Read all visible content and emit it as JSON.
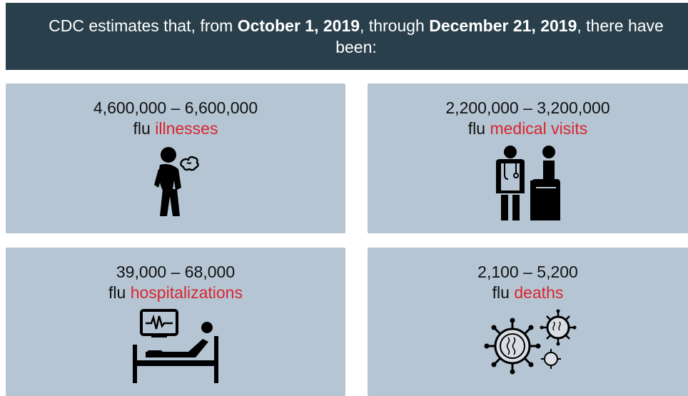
{
  "banner": {
    "prefix": "CDC estimates that, from ",
    "start_date": "October 1, 2019",
    "middle": ", through ",
    "end_date": "December 21, 2019",
    "suffix": ", there have been:"
  },
  "cards": [
    {
      "range": "4,600,000 – 6,600,000",
      "prefix": "flu ",
      "highlight": "illnesses",
      "icon": "sick-person-icon"
    },
    {
      "range": "2,200,000 – 3,200,000",
      "prefix": "flu ",
      "highlight": "medical visits",
      "icon": "doctor-patient-icon"
    },
    {
      "range": "39,000 – 68,000",
      "prefix": "flu ",
      "highlight": "hospitalizations",
      "icon": "hospital-bed-icon"
    },
    {
      "range": "2,100 – 5,200",
      "prefix": "flu ",
      "highlight": "deaths",
      "icon": "virus-icon"
    }
  ],
  "colors": {
    "banner_bg": "#293f4b",
    "card_bg": "#b5c5d3",
    "highlight": "#d9252f"
  }
}
